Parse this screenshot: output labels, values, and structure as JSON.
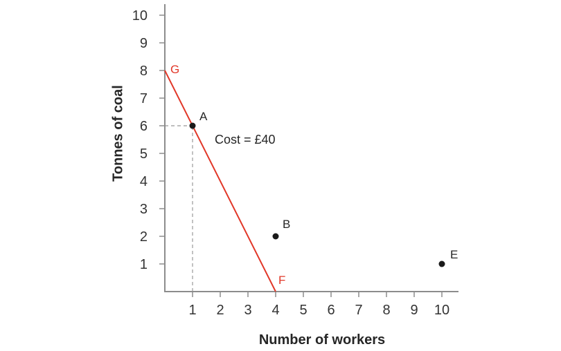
{
  "chart_data": {
    "type": "scatter",
    "title": "",
    "xlabel": "Number of workers",
    "ylabel": "Tonnes of coal",
    "xlim": [
      0,
      10.6
    ],
    "ylim": [
      0,
      10.4
    ],
    "x_ticks": [
      "1",
      "2",
      "3",
      "4",
      "5",
      "6",
      "7",
      "8",
      "9",
      "10"
    ],
    "y_ticks": [
      "1",
      "2",
      "3",
      "4",
      "5",
      "6",
      "7",
      "8",
      "9",
      "10"
    ],
    "grid": false,
    "legend": false,
    "points": [
      {
        "label": "A",
        "x": 1,
        "y": 6,
        "lx": 1.25,
        "ly": 6.2
      },
      {
        "label": "B",
        "x": 4,
        "y": 2,
        "lx": 4.25,
        "ly": 2.3
      },
      {
        "label": "E",
        "x": 10,
        "y": 1,
        "lx": 10.3,
        "ly": 1.2
      }
    ],
    "line": {
      "color": "#e13728",
      "points": [
        {
          "label": "G",
          "x": 0,
          "y": 8,
          "lx": 0.2,
          "ly": 7.9
        },
        {
          "label": "F",
          "x": 4,
          "y": 0,
          "lx": 4.1,
          "ly": 0.28
        }
      ]
    },
    "annotations": [
      {
        "text": "Cost = £40",
        "x": 1.8,
        "y": 5.35
      }
    ],
    "dashed_guides": [
      {
        "from": {
          "x": 0,
          "y": 6
        },
        "to": {
          "x": 1,
          "y": 6
        }
      },
      {
        "from": {
          "x": 1,
          "y": 0
        },
        "to": {
          "x": 1,
          "y": 6
        }
      }
    ],
    "colors": {
      "axis": "#8c8c8c",
      "tick_text": "#333333",
      "point": "#1a1a1a",
      "guide": "#a9a9a9",
      "label_text": "#262626",
      "background": "#ffffff"
    }
  }
}
